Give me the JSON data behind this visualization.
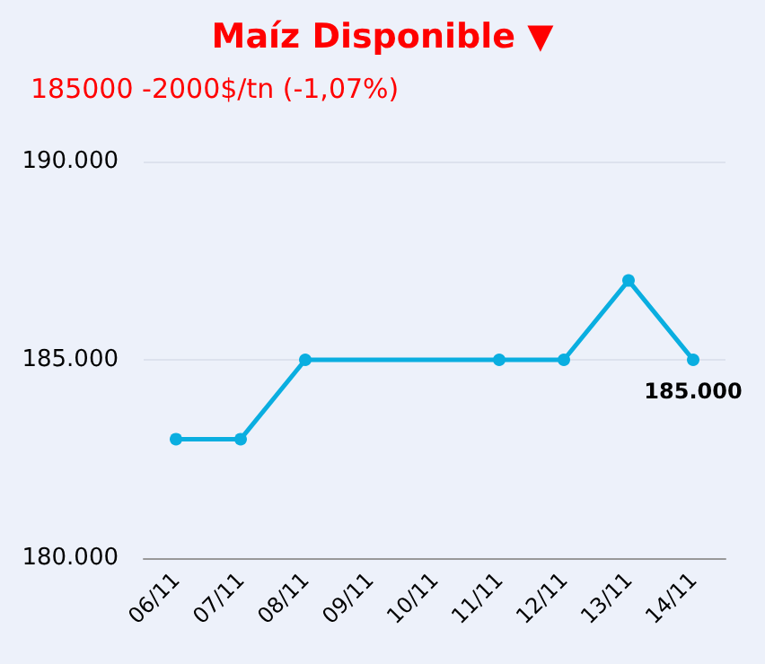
{
  "chart_data": {
    "type": "line",
    "title": "Maíz Disponible ▼",
    "subtitle": "185000 -2000$/tn (-1,07%)",
    "categories": [
      "06/11",
      "07/11",
      "08/11",
      "09/11",
      "10/11",
      "11/11",
      "12/11",
      "13/11",
      "14/11"
    ],
    "series": [
      {
        "color": "#0aaee0",
        "values": [
          183000,
          183000,
          185000,
          null,
          null,
          185000,
          185000,
          187000,
          185000
        ],
        "value_labels": [
          null,
          null,
          null,
          null,
          null,
          null,
          null,
          null,
          "185.000"
        ]
      }
    ],
    "ylim": [
      180000,
      190000
    ],
    "yticks": [
      {
        "value": 180000,
        "label": "180.000"
      },
      {
        "value": 185000,
        "label": "185.000"
      },
      {
        "value": 190000,
        "label": "190.000"
      }
    ],
    "grid": "y",
    "marker": "circle",
    "line_style": "solid"
  }
}
